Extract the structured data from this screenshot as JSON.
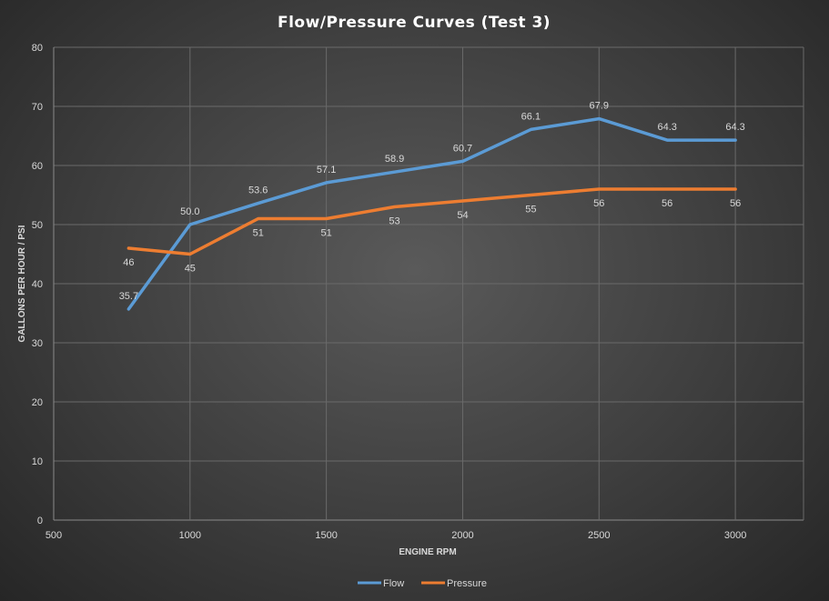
{
  "chart_data": {
    "type": "line",
    "title": "Flow/Pressure  Curves  (Test 3)",
    "xlabel": "ENGINE RPM",
    "ylabel": "GALLONS PER HOUR / PSI",
    "xlim": [
      500,
      3250
    ],
    "ylim": [
      0,
      80
    ],
    "x_ticks": [
      500,
      1000,
      1500,
      2000,
      2500,
      3000
    ],
    "y_ticks": [
      0,
      10,
      20,
      30,
      40,
      50,
      60,
      70,
      80
    ],
    "grid": true,
    "legend_position": "bottom",
    "series": [
      {
        "name": "Flow",
        "color": "#5b9bd5",
        "x": [
          775,
          1000,
          1250,
          1500,
          1750,
          2000,
          2250,
          2500,
          2750,
          3000
        ],
        "values": [
          35.7,
          50.0,
          53.6,
          57.1,
          58.9,
          60.7,
          66.1,
          67.9,
          64.3,
          64.3
        ],
        "labels": [
          "35.7",
          "50.0",
          "53.6",
          "57.1",
          "58.9",
          "60.7",
          "66.1",
          "67.9",
          "64.3",
          "64.3"
        ]
      },
      {
        "name": "Pressure",
        "color": "#ed7d31",
        "x": [
          775,
          1000,
          1250,
          1500,
          1750,
          2000,
          2250,
          2500,
          2750,
          3000
        ],
        "values": [
          46,
          45,
          51,
          51,
          53,
          54,
          55,
          56,
          56,
          56
        ],
        "labels": [
          "46",
          "45",
          "51",
          "51",
          "53",
          "54",
          "55",
          "56",
          "56",
          "56"
        ]
      }
    ]
  }
}
